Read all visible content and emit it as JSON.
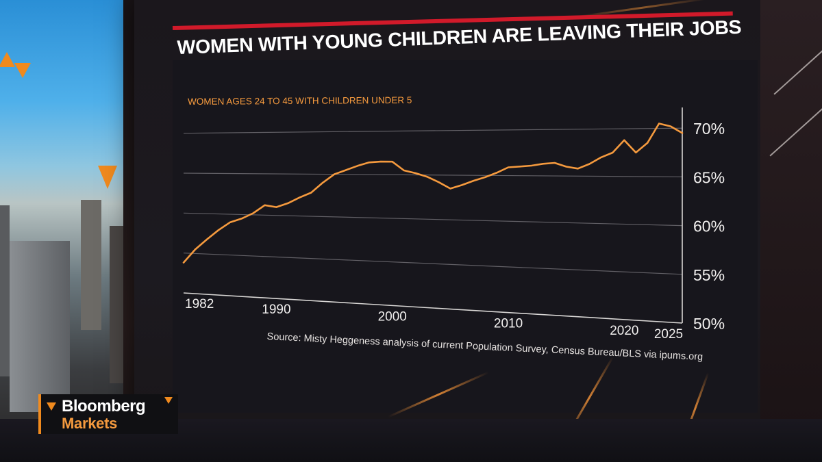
{
  "broadcast": {
    "logo_line1": "Bloomberg",
    "logo_line2": "Markets"
  },
  "colors": {
    "accent": "#f08a1e",
    "line": "#f59a3e",
    "title_rule": "#d11a2a",
    "panel": "#17161c"
  },
  "chart_data": {
    "type": "line",
    "title": "WOMEN WITH YOUNG CHILDREN ARE LEAVING THEIR JOBS",
    "subtitle": "WOMEN AGES 24 TO 45 WITH CHILDREN UNDER 5",
    "source": "Source: Misty Heggeness analysis of current Population Survey, Census Bureau/BLS via ipums.org",
    "x": [
      1982,
      1983,
      1984,
      1985,
      1986,
      1987,
      1988,
      1989,
      1990,
      1991,
      1992,
      1993,
      1994,
      1995,
      1996,
      1997,
      1998,
      1999,
      2000,
      2001,
      2002,
      2003,
      2004,
      2005,
      2006,
      2007,
      2008,
      2009,
      2010,
      2011,
      2012,
      2013,
      2014,
      2015,
      2016,
      2017,
      2018,
      2019,
      2020,
      2021,
      2022,
      2023,
      2024,
      2025
    ],
    "series": [
      {
        "values": [
          53.8,
          55.5,
          56.8,
          58.0,
          59.0,
          59.5,
          60.2,
          61.2,
          61.0,
          61.5,
          62.2,
          62.8,
          64.0,
          65.0,
          65.5,
          66.0,
          66.4,
          66.5,
          66.5,
          65.5,
          65.2,
          64.8,
          64.2,
          63.5,
          63.9,
          64.4,
          64.8,
          65.3,
          65.9,
          66.0,
          66.1,
          66.3,
          66.4,
          66.0,
          65.8,
          66.3,
          67.0,
          67.5,
          68.8,
          67.5,
          68.5,
          70.5,
          70.2,
          69.5
        ]
      }
    ],
    "x_ticks": [
      "1982",
      "1990",
      "2000",
      "2010",
      "2020",
      "2025"
    ],
    "y_ticks": [
      "70%",
      "65%",
      "60%",
      "55%",
      "50%"
    ],
    "ylim": [
      50,
      71
    ],
    "xlim": [
      1982,
      2025
    ],
    "grid": "horizontal",
    "y_axis_side": "right"
  }
}
